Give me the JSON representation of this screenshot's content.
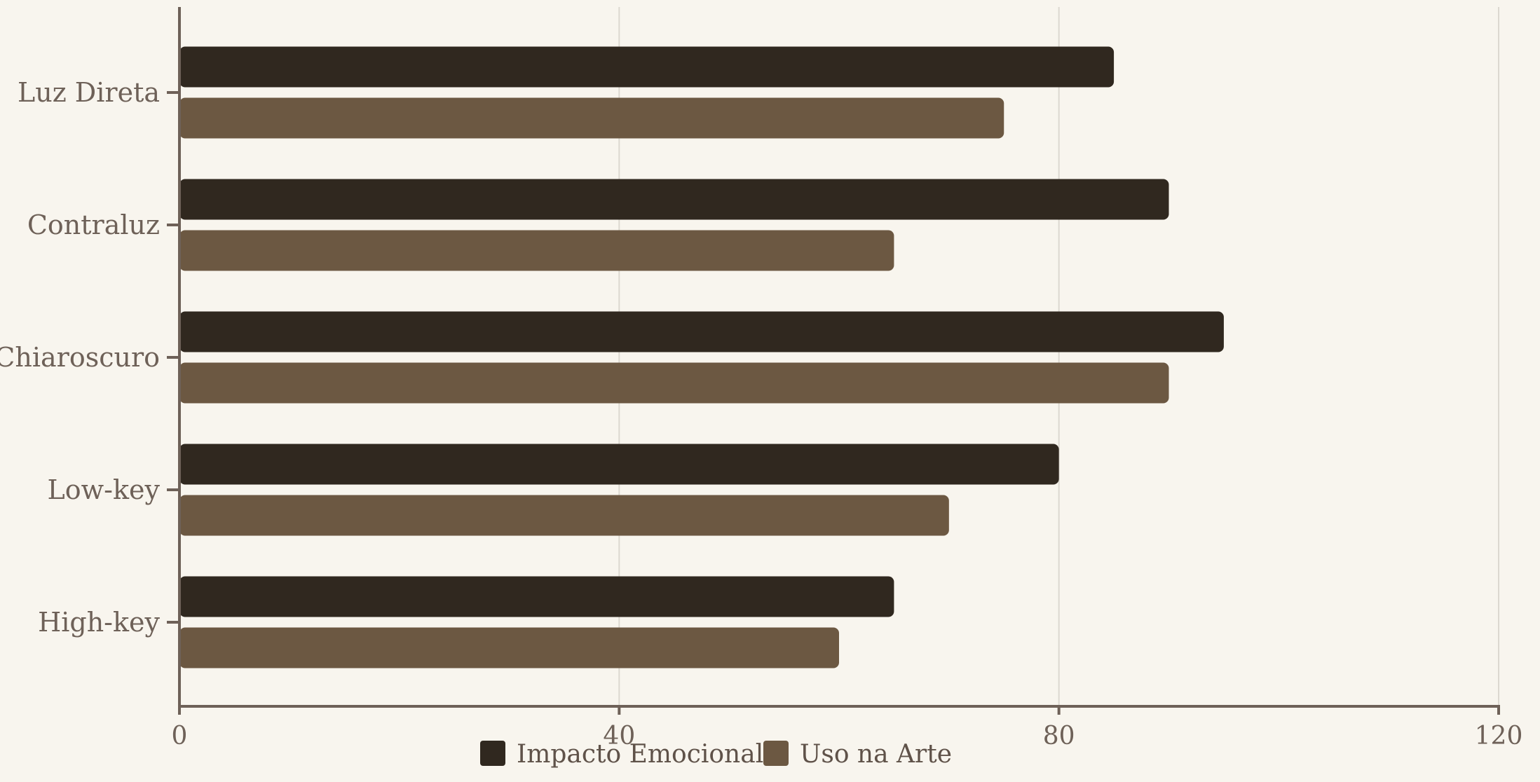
{
  "chart_data": {
    "type": "bar",
    "orientation": "horizontal",
    "categories": [
      "Luz Direta",
      "Contraluz",
      "Chiaroscuro",
      "Low-key",
      "High-key"
    ],
    "series": [
      {
        "name": "Impacto Emocional",
        "color": "#30281f",
        "values": [
          85,
          90,
          95,
          80,
          65
        ]
      },
      {
        "name": "Uso na Arte",
        "color": "#6c5842",
        "values": [
          75,
          65,
          90,
          70,
          60
        ]
      }
    ],
    "x_ticks": [
      "0",
      "40",
      "80",
      "120"
    ],
    "xlim": [
      0,
      120
    ],
    "grid": "vertical",
    "legend_position": "bottom-center",
    "title": "",
    "xlabel": "",
    "ylabel": ""
  }
}
